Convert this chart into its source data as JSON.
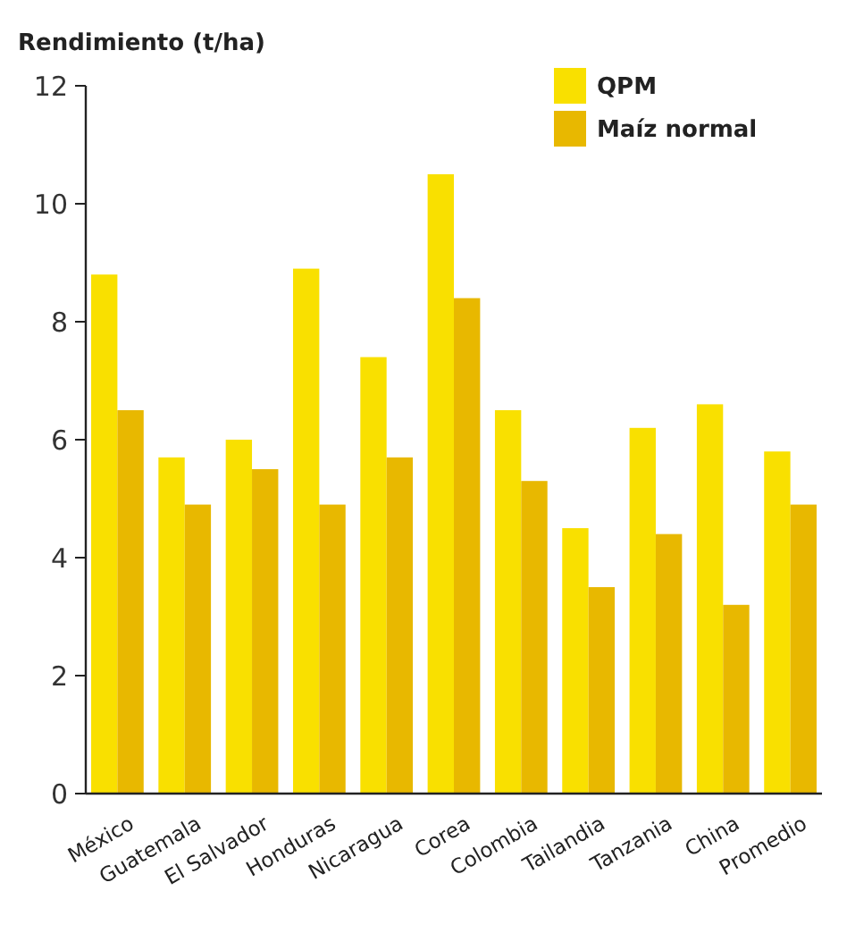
{
  "chart_data": {
    "type": "bar",
    "ylabel": "Rendimiento (t/ha)",
    "categories": [
      "México",
      "Guatemala",
      "El Salvador",
      "Honduras",
      "Nicaragua",
      "Corea",
      "Colombia",
      "Tailandia",
      "Tanzania",
      "China",
      "Promedio"
    ],
    "series": [
      {
        "name": "QPM",
        "color": "#f9e000",
        "values": [
          8.8,
          5.7,
          6.0,
          8.9,
          7.4,
          10.5,
          6.5,
          4.5,
          6.2,
          6.6,
          5.8
        ]
      },
      {
        "name": "Maíz normal",
        "color": "#e8b800",
        "values": [
          6.5,
          4.9,
          5.5,
          4.9,
          5.7,
          8.4,
          5.3,
          3.5,
          4.4,
          3.2,
          4.9
        ]
      }
    ],
    "ylim": [
      0,
      12
    ],
    "yticks": [
      0,
      2,
      4,
      6,
      8,
      10,
      12
    ],
    "grid": false,
    "legend": "top right"
  }
}
